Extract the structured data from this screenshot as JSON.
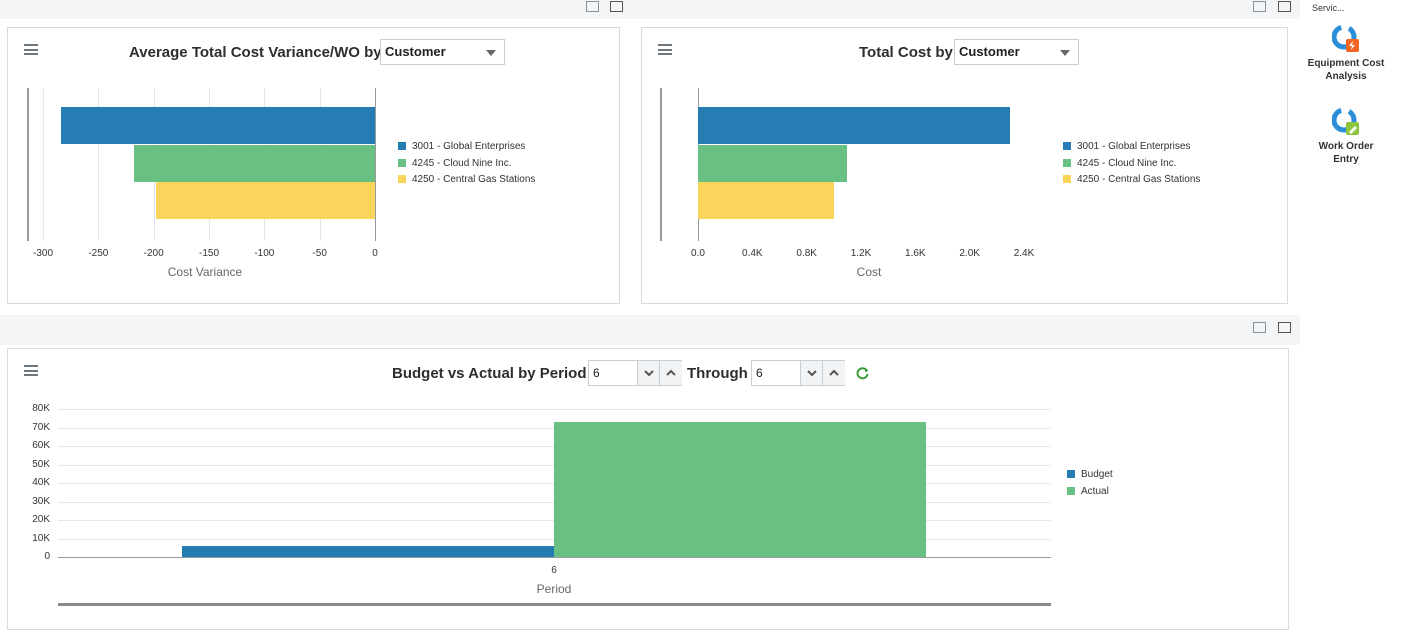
{
  "top_panels": {
    "cost_variance": {
      "title": "Average Total Cost Variance/WO by",
      "selector_value": "Customer",
      "chart_data": {
        "type": "bar",
        "orientation": "horizontal",
        "title": "Average Total Cost Variance/WO by Customer",
        "xlabel": "Cost Variance",
        "ylabel": "",
        "xlim": [
          -300,
          0
        ],
        "x_ticks": [
          "-300",
          "-250",
          "-200",
          "-150",
          "-100",
          "-50",
          "0"
        ],
        "series": [
          {
            "name": "3001 - Global Enterprises",
            "value": -284,
            "color": "#267db3"
          },
          {
            "name": "4245 - Cloud Nine Inc.",
            "value": -218,
            "color": "#68c182"
          },
          {
            "name": "4250 - Central Gas Stations",
            "value": -198,
            "color": "#fad55c"
          }
        ],
        "grid": true,
        "legend_position": "right"
      }
    },
    "total_cost": {
      "title": "Total Cost by",
      "selector_value": "Customer",
      "chart_data": {
        "type": "bar",
        "orientation": "horizontal",
        "title": "Total Cost by Customer",
        "xlabel": "Cost",
        "ylabel": "",
        "xlim": [
          0,
          2400
        ],
        "x_ticks": [
          "0.0",
          "0.4K",
          "0.8K",
          "1.2K",
          "1.6K",
          "2.0K",
          "2.4K"
        ],
        "series": [
          {
            "name": "3001 - Global Enterprises",
            "value": 2300,
            "color": "#267db3"
          },
          {
            "name": "4245 - Cloud Nine Inc.",
            "value": 1100,
            "color": "#68c182"
          },
          {
            "name": "4250 - Central Gas Stations",
            "value": 1000,
            "color": "#fad55c"
          }
        ],
        "grid": false,
        "legend_position": "right"
      }
    }
  },
  "sidebar": {
    "header_text": "Servic...",
    "items": [
      {
        "label_line1": "Equipment Cost",
        "label_line2": "Analysis",
        "icon": "equipment-cost-analysis-icon"
      },
      {
        "label_line1": "Work Order",
        "label_line2": "Entry",
        "icon": "work-order-entry-icon"
      }
    ]
  },
  "budget_panel": {
    "title": "Budget vs Actual by Period",
    "from_value": "6",
    "through_label": "Through",
    "through_value": "6",
    "chart_data": {
      "type": "bar",
      "title": "Budget vs Actual by Period",
      "xlabel": "Period",
      "ylabel": "",
      "categories": [
        "6"
      ],
      "ylim": [
        0,
        80000
      ],
      "y_ticks": [
        "0",
        "10K",
        "20K",
        "30K",
        "40K",
        "50K",
        "60K",
        "70K",
        "80K"
      ],
      "series": [
        {
          "name": "Budget",
          "values": [
            6000
          ],
          "color": "#267db3"
        },
        {
          "name": "Actual",
          "values": [
            73000
          ],
          "color": "#68c182"
        }
      ],
      "grid": true,
      "legend_position": "right"
    }
  }
}
